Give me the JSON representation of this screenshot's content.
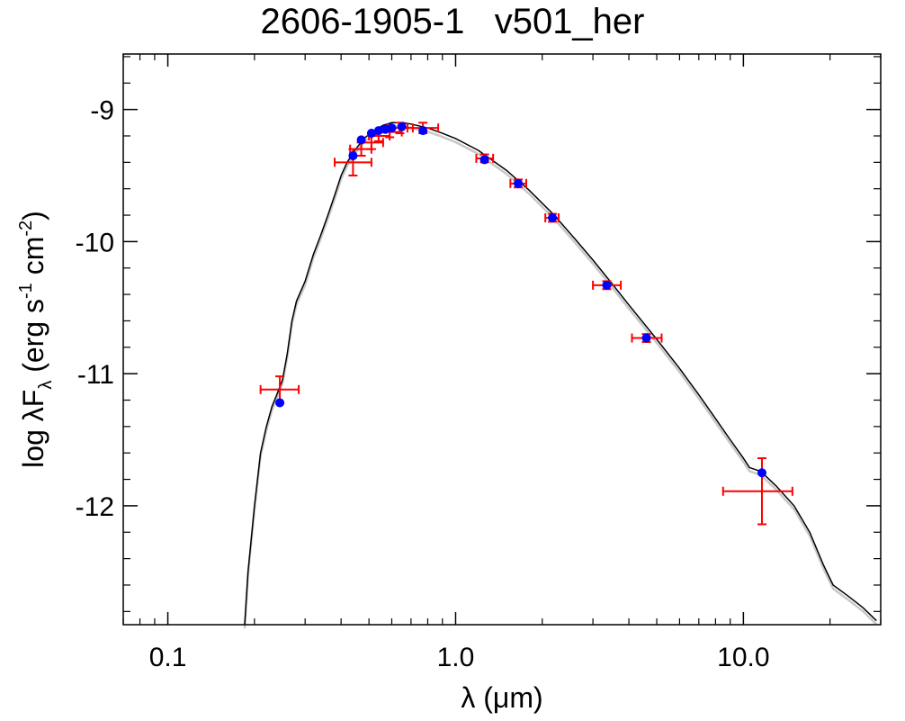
{
  "chart_data": {
    "type": "scatter",
    "title": "2606-1905-1   v501_her",
    "xlabel": "λ (μm)",
    "ylabel": {
      "prefix": "log λF",
      "prefix_sub": "λ",
      "unit_open": " (erg s",
      "unit_exp1": "-1",
      "unit_mid": " cm",
      "unit_exp2": "-2",
      "unit_close": ")"
    },
    "x_scale": "log",
    "xlim": [
      0.07,
      30
    ],
    "ylim": [
      -12.9,
      -8.58
    ],
    "x_ticks": [
      {
        "value": 0.1,
        "label": "0.1"
      },
      {
        "value": 1.0,
        "label": "1.0"
      },
      {
        "value": 10.0,
        "label": "10.0"
      }
    ],
    "y_ticks": [
      {
        "value": -9,
        "label": "-9"
      },
      {
        "value": -10,
        "label": "-10"
      },
      {
        "value": -11,
        "label": "-11"
      },
      {
        "value": -12,
        "label": "-12"
      }
    ],
    "model_curve_color": "#000000",
    "model_curve_alt_color": "#c8c8c8",
    "observed_color": "#ff0000",
    "model_point_color": "#0000ff",
    "model_curve": [
      [
        0.185,
        -12.9
      ],
      [
        0.19,
        -12.5
      ],
      [
        0.2,
        -12.0
      ],
      [
        0.21,
        -11.6
      ],
      [
        0.22,
        -11.4
      ],
      [
        0.23,
        -11.25
      ],
      [
        0.24,
        -11.15
      ],
      [
        0.25,
        -11.05
      ],
      [
        0.26,
        -10.85
      ],
      [
        0.27,
        -10.6
      ],
      [
        0.28,
        -10.45
      ],
      [
        0.3,
        -10.3
      ],
      [
        0.32,
        -10.1
      ],
      [
        0.34,
        -9.95
      ],
      [
        0.36,
        -9.8
      ],
      [
        0.38,
        -9.65
      ],
      [
        0.4,
        -9.5
      ],
      [
        0.42,
        -9.4
      ],
      [
        0.45,
        -9.3
      ],
      [
        0.48,
        -9.22
      ],
      [
        0.52,
        -9.16
      ],
      [
        0.56,
        -9.12
      ],
      [
        0.6,
        -9.1
      ],
      [
        0.65,
        -9.1
      ],
      [
        0.7,
        -9.11
      ],
      [
        0.8,
        -9.14
      ],
      [
        0.9,
        -9.18
      ],
      [
        1.0,
        -9.22
      ],
      [
        1.2,
        -9.31
      ],
      [
        1.5,
        -9.46
      ],
      [
        1.8,
        -9.61
      ],
      [
        2.2,
        -9.8
      ],
      [
        2.6,
        -9.98
      ],
      [
        3.0,
        -10.14
      ],
      [
        3.5,
        -10.32
      ],
      [
        4.0,
        -10.48
      ],
      [
        5.0,
        -10.74
      ],
      [
        6.0,
        -10.96
      ],
      [
        7.0,
        -11.16
      ],
      [
        8.0,
        -11.34
      ],
      [
        9.0,
        -11.5
      ],
      [
        10.0,
        -11.64
      ],
      [
        10.5,
        -11.71
      ],
      [
        11.5,
        -11.74
      ],
      [
        13.0,
        -11.85
      ],
      [
        15.0,
        -12.0
      ],
      [
        17.0,
        -12.2
      ],
      [
        19.0,
        -12.45
      ],
      [
        20.5,
        -12.6
      ],
      [
        23.0,
        -12.68
      ],
      [
        26.0,
        -12.77
      ],
      [
        29.0,
        -12.87
      ]
    ],
    "observed": [
      {
        "x": 0.245,
        "y": -11.12,
        "xlo": 0.21,
        "xhi": 0.285,
        "yerr": 0.1
      },
      {
        "x": 0.44,
        "y": -9.4,
        "xlo": 0.38,
        "xhi": 0.51,
        "yerr": 0.1
      },
      {
        "x": 0.47,
        "y": -9.3,
        "xlo": 0.43,
        "xhi": 0.51,
        "yerr": 0.05
      },
      {
        "x": 0.51,
        "y": -9.25,
        "xlo": 0.47,
        "xhi": 0.56,
        "yerr": 0.05
      },
      {
        "x": 0.54,
        "y": -9.2,
        "xlo": 0.5,
        "xhi": 0.59,
        "yerr": 0.04
      },
      {
        "x": 0.59,
        "y": -9.17,
        "xlo": 0.53,
        "xhi": 0.65,
        "yerr": 0.04
      },
      {
        "x": 0.64,
        "y": -9.14,
        "xlo": 0.58,
        "xhi": 0.71,
        "yerr": 0.04
      },
      {
        "x": 0.77,
        "y": -9.14,
        "xlo": 0.68,
        "xhi": 0.87,
        "yerr": 0.04
      },
      {
        "x": 1.26,
        "y": -9.37,
        "xlo": 1.18,
        "xhi": 1.35,
        "yerr": 0.03
      },
      {
        "x": 1.65,
        "y": -9.56,
        "xlo": 1.55,
        "xhi": 1.76,
        "yerr": 0.03
      },
      {
        "x": 2.17,
        "y": -9.82,
        "xlo": 2.05,
        "xhi": 2.28,
        "yerr": 0.03
      },
      {
        "x": 3.35,
        "y": -10.33,
        "xlo": 3.0,
        "xhi": 3.75,
        "yerr": 0.03
      },
      {
        "x": 4.6,
        "y": -10.73,
        "xlo": 4.1,
        "xhi": 5.2,
        "yerr": 0.03
      },
      {
        "x": 11.6,
        "y": -11.89,
        "xlo": 8.5,
        "xhi": 14.8,
        "yerr": 0.25
      }
    ],
    "model_points": [
      {
        "x": 0.245,
        "y": -11.22
      },
      {
        "x": 0.44,
        "y": -9.35
      },
      {
        "x": 0.47,
        "y": -9.23
      },
      {
        "x": 0.51,
        "y": -9.18
      },
      {
        "x": 0.54,
        "y": -9.16
      },
      {
        "x": 0.57,
        "y": -9.15
      },
      {
        "x": 0.6,
        "y": -9.14
      },
      {
        "x": 0.65,
        "y": -9.13
      },
      {
        "x": 0.77,
        "y": -9.16
      },
      {
        "x": 1.26,
        "y": -9.38
      },
      {
        "x": 1.65,
        "y": -9.56
      },
      {
        "x": 2.17,
        "y": -9.82
      },
      {
        "x": 3.35,
        "y": -10.33
      },
      {
        "x": 4.6,
        "y": -10.73
      },
      {
        "x": 11.6,
        "y": -11.75
      }
    ]
  }
}
